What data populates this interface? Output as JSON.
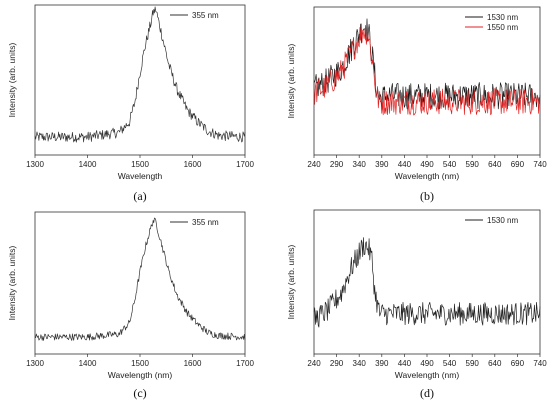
{
  "chart_data": [
    {
      "panel": "(a)",
      "type": "line",
      "xlabel": "Wavelength",
      "ylabel": "Intensity (arb. units)",
      "xlim": [
        1300,
        1700
      ],
      "xticks": [
        1300,
        1400,
        1500,
        1600,
        1700
      ],
      "ylim": [
        0,
        1
      ],
      "legend": "top-right",
      "series": [
        {
          "name": "355 nm",
          "color": "#333333",
          "noise": 0.035,
          "x": [
            1300,
            1400,
            1460,
            1480,
            1490,
            1500,
            1510,
            1520,
            1525,
            1530,
            1535,
            1545,
            1555,
            1570,
            1590,
            1610,
            1630,
            1650,
            1700
          ],
          "values": [
            0.12,
            0.12,
            0.15,
            0.22,
            0.35,
            0.55,
            0.73,
            0.87,
            0.95,
            0.97,
            0.9,
            0.75,
            0.6,
            0.44,
            0.3,
            0.22,
            0.16,
            0.13,
            0.12
          ]
        }
      ]
    },
    {
      "panel": "(b)",
      "type": "line",
      "xlabel": "Wavelength (nm)",
      "ylabel": "Intensity (arb. units)",
      "xlim": [
        240,
        740
      ],
      "xticks": [
        240,
        290,
        340,
        390,
        440,
        490,
        540,
        590,
        640,
        690,
        740
      ],
      "ylim": [
        0,
        1
      ],
      "legend": "top-right",
      "series": [
        {
          "name": "1530 nm",
          "color": "#1a1a1a",
          "noise": 0.09,
          "x": [
            240,
            270,
            300,
            320,
            340,
            350,
            360,
            370,
            378,
            385,
            400,
            740
          ],
          "values": [
            0.45,
            0.5,
            0.58,
            0.7,
            0.82,
            0.87,
            0.84,
            0.65,
            0.45,
            0.38,
            0.4,
            0.4
          ]
        },
        {
          "name": "1550 nm",
          "color": "#e02020",
          "noise": 0.09,
          "x": [
            240,
            270,
            300,
            320,
            340,
            350,
            360,
            370,
            378,
            385,
            400,
            740
          ],
          "values": [
            0.42,
            0.47,
            0.56,
            0.68,
            0.8,
            0.85,
            0.82,
            0.62,
            0.42,
            0.35,
            0.36,
            0.36
          ]
        }
      ]
    },
    {
      "panel": "(c)",
      "type": "line",
      "xlabel": "Wavelength (nm)",
      "ylabel": "Intensity (arb. units)",
      "xlim": [
        1300,
        1700
      ],
      "xticks": [
        1300,
        1400,
        1500,
        1600,
        1700
      ],
      "ylim": [
        0,
        1
      ],
      "legend": "top-right",
      "series": [
        {
          "name": "355 nm",
          "color": "#333333",
          "noise": 0.025,
          "x": [
            1300,
            1400,
            1460,
            1480,
            1490,
            1500,
            1510,
            1520,
            1525,
            1530,
            1535,
            1545,
            1555,
            1570,
            1590,
            1610,
            1630,
            1650,
            1700
          ],
          "values": [
            0.12,
            0.12,
            0.14,
            0.22,
            0.38,
            0.58,
            0.75,
            0.88,
            0.94,
            0.93,
            0.86,
            0.72,
            0.58,
            0.42,
            0.29,
            0.21,
            0.15,
            0.13,
            0.12
          ]
        }
      ]
    },
    {
      "panel": "(d)",
      "type": "line",
      "xlabel": "Wavelength (nm)",
      "ylabel": "Intensity (arb. units)",
      "xlim": [
        240,
        740
      ],
      "xticks": [
        240,
        290,
        340,
        390,
        440,
        490,
        540,
        590,
        640,
        690,
        740
      ],
      "ylim": [
        0,
        1
      ],
      "legend": "top-right",
      "series": [
        {
          "name": "1530 nm",
          "color": "#222222",
          "noise": 0.08,
          "x": [
            240,
            270,
            300,
            320,
            340,
            350,
            360,
            368,
            375,
            385,
            400,
            740
          ],
          "values": [
            0.24,
            0.3,
            0.42,
            0.58,
            0.7,
            0.76,
            0.74,
            0.66,
            0.42,
            0.28,
            0.28,
            0.28
          ]
        }
      ]
    }
  ]
}
